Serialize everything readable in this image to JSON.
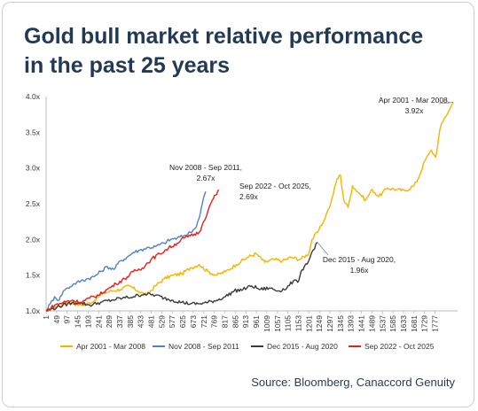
{
  "title_line1": "Gold bull market relative performance",
  "title_line2": "in the past 25 years",
  "source": "Source: Bloomberg, Canaccord Genuity",
  "chart_data": {
    "type": "line",
    "title": "Gold bull market relative performance in the past 25 years",
    "xlabel": "",
    "ylabel": "",
    "xlim": [
      1,
      1880
    ],
    "ylim": [
      1.0,
      4.0
    ],
    "y_ticks": [
      "1.0x",
      "1.5x",
      "2.0x",
      "2.5x",
      "3.0x",
      "3.5x",
      "4.0x"
    ],
    "y_tick_values": [
      1.0,
      1.5,
      2.0,
      2.5,
      3.0,
      3.5,
      4.0
    ],
    "x_ticks": [
      1,
      49,
      97,
      145,
      193,
      241,
      289,
      337,
      385,
      433,
      481,
      529,
      577,
      625,
      673,
      721,
      769,
      817,
      865,
      913,
      961,
      1009,
      1057,
      1105,
      1153,
      1201,
      1249,
      1297,
      1345,
      1393,
      1441,
      1489,
      1537,
      1585,
      1633,
      1681,
      1729,
      1777
    ],
    "grid": false,
    "legend_position": "bottom",
    "series": [
      {
        "name": "Apr 2001 - Mar 2008",
        "color": "#f4b400",
        "points": [
          [
            1,
            1.0
          ],
          [
            40,
            1.05
          ],
          [
            100,
            1.12
          ],
          [
            160,
            1.08
          ],
          [
            210,
            1.12
          ],
          [
            260,
            1.25
          ],
          [
            300,
            1.28
          ],
          [
            340,
            1.3
          ],
          [
            380,
            1.35
          ],
          [
            420,
            1.28
          ],
          [
            460,
            1.22
          ],
          [
            500,
            1.35
          ],
          [
            540,
            1.45
          ],
          [
            580,
            1.5
          ],
          [
            620,
            1.52
          ],
          [
            660,
            1.6
          ],
          [
            700,
            1.65
          ],
          [
            740,
            1.55
          ],
          [
            780,
            1.5
          ],
          [
            820,
            1.55
          ],
          [
            870,
            1.65
          ],
          [
            920,
            1.75
          ],
          [
            960,
            1.8
          ],
          [
            1000,
            1.68
          ],
          [
            1040,
            1.72
          ],
          [
            1080,
            1.7
          ],
          [
            1120,
            1.75
          ],
          [
            1160,
            1.72
          ],
          [
            1200,
            1.8
          ],
          [
            1215,
            2.0
          ],
          [
            1240,
            2.1
          ],
          [
            1260,
            2.2
          ],
          [
            1280,
            2.35
          ],
          [
            1300,
            2.5
          ],
          [
            1330,
            2.85
          ],
          [
            1345,
            2.9
          ],
          [
            1360,
            2.55
          ],
          [
            1380,
            2.45
          ],
          [
            1400,
            2.75
          ],
          [
            1430,
            2.65
          ],
          [
            1460,
            2.55
          ],
          [
            1490,
            2.7
          ],
          [
            1520,
            2.6
          ],
          [
            1560,
            2.72
          ],
          [
            1600,
            2.7
          ],
          [
            1640,
            2.68
          ],
          [
            1680,
            2.75
          ],
          [
            1700,
            2.85
          ],
          [
            1730,
            3.1
          ],
          [
            1750,
            3.2
          ],
          [
            1760,
            3.25
          ],
          [
            1780,
            3.15
          ],
          [
            1800,
            3.55
          ],
          [
            1820,
            3.7
          ],
          [
            1840,
            3.8
          ],
          [
            1860,
            3.92
          ]
        ]
      },
      {
        "name": "Nov 2008 - Sep 2011",
        "color": "#4f83c3",
        "points": [
          [
            1,
            1.0
          ],
          [
            20,
            1.1
          ],
          [
            40,
            1.2
          ],
          [
            60,
            1.15
          ],
          [
            80,
            1.28
          ],
          [
            100,
            1.32
          ],
          [
            130,
            1.38
          ],
          [
            160,
            1.42
          ],
          [
            190,
            1.45
          ],
          [
            220,
            1.48
          ],
          [
            250,
            1.55
          ],
          [
            280,
            1.62
          ],
          [
            310,
            1.58
          ],
          [
            340,
            1.7
          ],
          [
            370,
            1.75
          ],
          [
            400,
            1.82
          ],
          [
            430,
            1.85
          ],
          [
            460,
            1.88
          ],
          [
            500,
            1.9
          ],
          [
            540,
            1.95
          ],
          [
            570,
            2.0
          ],
          [
            600,
            2.02
          ],
          [
            630,
            2.05
          ],
          [
            660,
            2.1
          ],
          [
            680,
            2.15
          ],
          [
            700,
            2.3
          ],
          [
            710,
            2.45
          ],
          [
            720,
            2.58
          ],
          [
            730,
            2.67
          ]
        ]
      },
      {
        "name": "Dec 2015 - Aug 2020",
        "color": "#3a3a3a",
        "points": [
          [
            1,
            1.0
          ],
          [
            50,
            1.05
          ],
          [
            100,
            1.1
          ],
          [
            150,
            1.12
          ],
          [
            200,
            1.08
          ],
          [
            250,
            1.12
          ],
          [
            300,
            1.15
          ],
          [
            350,
            1.18
          ],
          [
            400,
            1.2
          ],
          [
            450,
            1.24
          ],
          [
            500,
            1.22
          ],
          [
            540,
            1.18
          ],
          [
            580,
            1.15
          ],
          [
            620,
            1.12
          ],
          [
            660,
            1.1
          ],
          [
            700,
            1.1
          ],
          [
            740,
            1.12
          ],
          [
            780,
            1.15
          ],
          [
            820,
            1.2
          ],
          [
            860,
            1.28
          ],
          [
            900,
            1.3
          ],
          [
            940,
            1.35
          ],
          [
            980,
            1.3
          ],
          [
            1020,
            1.32
          ],
          [
            1060,
            1.28
          ],
          [
            1100,
            1.32
          ],
          [
            1130,
            1.42
          ],
          [
            1150,
            1.4
          ],
          [
            1165,
            1.55
          ],
          [
            1180,
            1.62
          ],
          [
            1200,
            1.7
          ],
          [
            1220,
            1.85
          ],
          [
            1240,
            1.96
          ]
        ]
      },
      {
        "name": "Sep 2022 - Oct 2025",
        "color": "#e8201c",
        "points": [
          [
            1,
            1.0
          ],
          [
            40,
            1.08
          ],
          [
            80,
            1.12
          ],
          [
            120,
            1.15
          ],
          [
            160,
            1.12
          ],
          [
            200,
            1.18
          ],
          [
            240,
            1.22
          ],
          [
            280,
            1.3
          ],
          [
            320,
            1.38
          ],
          [
            360,
            1.45
          ],
          [
            400,
            1.55
          ],
          [
            440,
            1.6
          ],
          [
            480,
            1.72
          ],
          [
            520,
            1.8
          ],
          [
            560,
            1.88
          ],
          [
            600,
            1.95
          ],
          [
            630,
            2.02
          ],
          [
            660,
            2.05
          ],
          [
            700,
            2.1
          ],
          [
            720,
            2.25
          ],
          [
            740,
            2.4
          ],
          [
            760,
            2.55
          ],
          [
            775,
            2.62
          ],
          [
            790,
            2.69
          ]
        ]
      }
    ],
    "annotations": [
      {
        "lines": [
          "Apr 2001 - Mar 2008,",
          "3.92x"
        ],
        "series": "Apr 2001 - Mar 2008"
      },
      {
        "lines": [
          "Nov 2008 - Sep 2011,",
          "2.67x"
        ],
        "series": "Nov 2008 - Sep 2011"
      },
      {
        "lines": [
          "Sep 2022 - Oct 2025,",
          "2.69x"
        ],
        "series": "Sep 2022 - Oct 2025"
      },
      {
        "lines": [
          "Dec 2015 - Aug 2020,",
          "1.96x"
        ],
        "series": "Dec 2015 - Aug 2020"
      }
    ]
  }
}
